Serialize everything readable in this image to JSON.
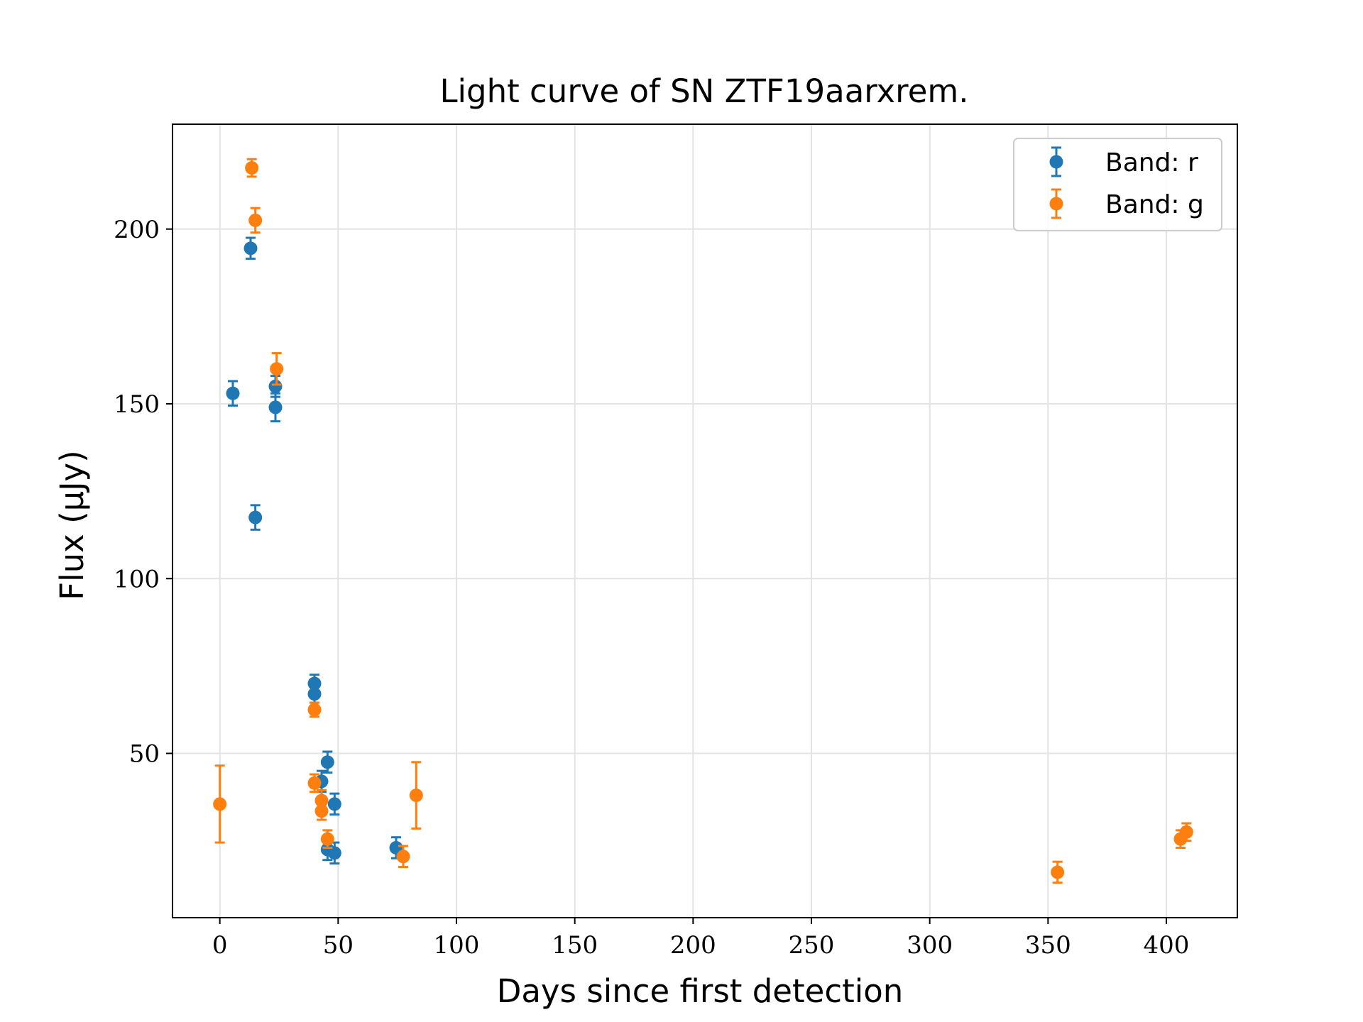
{
  "chart_data": {
    "type": "scatter",
    "title": "Light curve of SN ZTF19aarxrem.",
    "xlabel": "Days since first detection",
    "ylabel": "Flux (μJy)",
    "xlim": [
      -20,
      430
    ],
    "ylim": [
      3,
      230
    ],
    "xticks": [
      0,
      50,
      100,
      150,
      200,
      250,
      300,
      350,
      400
    ],
    "yticks": [
      50,
      100,
      150,
      200
    ],
    "grid": true,
    "legend_position": "top-right",
    "series": [
      {
        "name": "Band: r",
        "color": "#1f77b4",
        "points": [
          {
            "x": 5.5,
            "y": 153,
            "err": 3.5
          },
          {
            "x": 13,
            "y": 194.5,
            "err": 3
          },
          {
            "x": 15,
            "y": 117.5,
            "err": 3.5
          },
          {
            "x": 23.5,
            "y": 155,
            "err": 3
          },
          {
            "x": 23.5,
            "y": 149,
            "err": 4
          },
          {
            "x": 40,
            "y": 70,
            "err": 2.5
          },
          {
            "x": 40,
            "y": 67,
            "err": 2.5
          },
          {
            "x": 43,
            "y": 42,
            "err": 3
          },
          {
            "x": 45.5,
            "y": 47.5,
            "err": 3
          },
          {
            "x": 45.5,
            "y": 22.5,
            "err": 3
          },
          {
            "x": 48.5,
            "y": 35.5,
            "err": 3
          },
          {
            "x": 48.5,
            "y": 21.5,
            "err": 3
          },
          {
            "x": 74.5,
            "y": 23,
            "err": 3
          }
        ]
      },
      {
        "name": "Band: g",
        "color": "#ff7f0e",
        "points": [
          {
            "x": 0,
            "y": 35.5,
            "err": 11
          },
          {
            "x": 13.5,
            "y": 217.5,
            "err": 2.5
          },
          {
            "x": 15,
            "y": 202.5,
            "err": 3.5
          },
          {
            "x": 24,
            "y": 160,
            "err": 4.5
          },
          {
            "x": 40,
            "y": 62.5,
            "err": 2
          },
          {
            "x": 40,
            "y": 41.5,
            "err": 2.5
          },
          {
            "x": 43,
            "y": 36.5,
            "err": 3
          },
          {
            "x": 43,
            "y": 33.5,
            "err": 2.5
          },
          {
            "x": 45.5,
            "y": 25.5,
            "err": 2.5
          },
          {
            "x": 77.5,
            "y": 20.5,
            "err": 3
          },
          {
            "x": 83,
            "y": 38,
            "err": 9.5
          },
          {
            "x": 354,
            "y": 16,
            "err": 3
          },
          {
            "x": 406,
            "y": 25.5,
            "err": 2.5
          },
          {
            "x": 408.5,
            "y": 27.5,
            "err": 2.5
          }
        ]
      }
    ]
  }
}
